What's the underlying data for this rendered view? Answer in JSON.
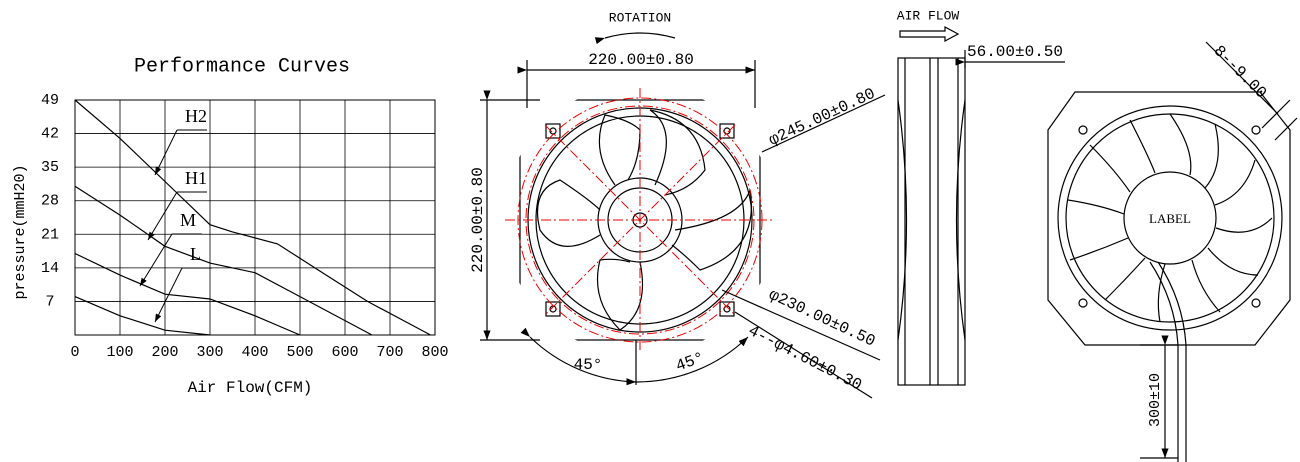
{
  "chart_data": {
    "type": "line",
    "title": "Performance Curves",
    "x_label": "Air Flow(CFM)",
    "y_label": "pressure(mmH20)",
    "xlim": [
      0,
      800
    ],
    "ylim": [
      0,
      49
    ],
    "xticks": [
      0,
      100,
      200,
      300,
      400,
      500,
      600,
      700,
      800
    ],
    "yticks": [
      7,
      14,
      21,
      28,
      35,
      42,
      49
    ],
    "grid": true,
    "series": [
      {
        "name": "H2",
        "color": "#000000",
        "x": [
          0,
          100,
          200,
          300,
          350,
          450,
          550,
          650,
          750,
          790
        ],
        "values": [
          49,
          41,
          32,
          23,
          21.5,
          19,
          13,
          7,
          2,
          0
        ]
      },
      {
        "name": "H1",
        "color": "#000000",
        "x": [
          0,
          100,
          200,
          300,
          400,
          500,
          600,
          660
        ],
        "values": [
          31,
          25,
          18.5,
          15,
          13,
          8,
          3,
          0
        ]
      },
      {
        "name": "M",
        "color": "#000000",
        "x": [
          0,
          100,
          200,
          300,
          400,
          500
        ],
        "values": [
          17,
          12.5,
          8.5,
          7.5,
          4,
          0
        ]
      },
      {
        "name": "L",
        "color": "#000000",
        "x": [
          0,
          100,
          200,
          300
        ],
        "values": [
          8,
          4,
          1,
          0
        ]
      }
    ]
  },
  "drawing": {
    "rotation": "ROTATION",
    "air_flow": "AIR FLOW",
    "width_top": "220.00±0.80",
    "height_left": "220.00±0.80",
    "outer_diameter": "φ245.00±0.80",
    "depth": "56.00±0.50",
    "corner": "8--9.00",
    "inner_diameter": "φ230.00±0.50",
    "holes": "4--φ4.60±0.30",
    "angle_left": "45°",
    "angle_right": "45°",
    "label": "LABEL",
    "cable": "300±10"
  }
}
